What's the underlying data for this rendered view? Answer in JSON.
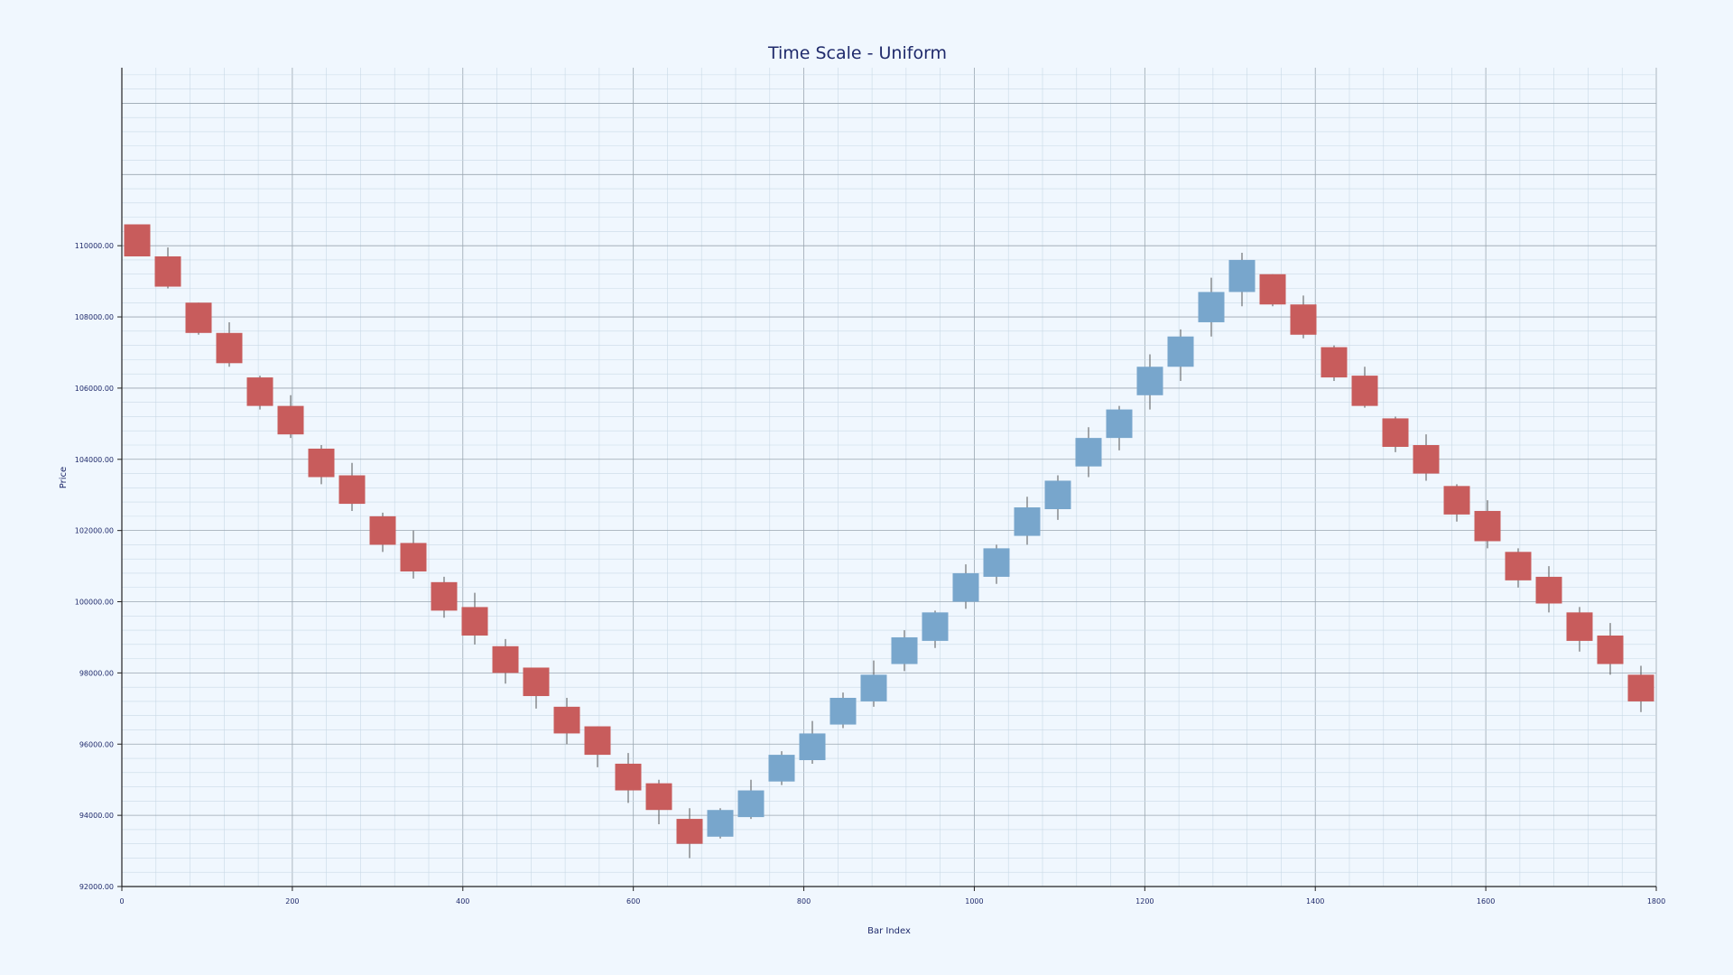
{
  "chart_data": {
    "type": "candlestick",
    "title": "Time Scale - Uniform",
    "xlabel": "Bar Index",
    "ylabel": "Price",
    "xlim": [
      0,
      1800
    ],
    "ylim": [
      92000,
      115000
    ],
    "x_ticks": [
      0,
      200,
      400,
      600,
      800,
      1000,
      1200,
      1400,
      1600,
      1800
    ],
    "x_tick_labels": [
      "0",
      "200",
      "400",
      "600",
      "800",
      "1000",
      "1200",
      "1400",
      "1600",
      "1800"
    ],
    "y_ticks": [
      92000,
      94000,
      96000,
      98000,
      100000,
      102000,
      104000,
      106000,
      108000,
      110000
    ],
    "y_tick_labels": [
      "92000.00",
      "94000.00",
      "96000.00",
      "98000.00",
      "100000.00",
      "102000.00",
      "104000.00",
      "106000.00",
      "108000.00",
      "110000.00"
    ],
    "grid": true,
    "colors": {
      "up": "#78a6cc",
      "down": "#c85c5c",
      "text": "#1f2a6b"
    },
    "candles": [
      {
        "x": 18,
        "open": 110600,
        "high": 110600,
        "low": 109700,
        "close": 109700
      },
      {
        "x": 54,
        "open": 109700,
        "high": 109950,
        "low": 108800,
        "close": 108850
      },
      {
        "x": 90,
        "open": 108400,
        "high": 108400,
        "low": 107500,
        "close": 107550
      },
      {
        "x": 126,
        "open": 107550,
        "high": 107850,
        "low": 106600,
        "close": 106700
      },
      {
        "x": 162,
        "open": 106300,
        "high": 106350,
        "low": 105400,
        "close": 105500
      },
      {
        "x": 198,
        "open": 105500,
        "high": 105800,
        "low": 104600,
        "close": 104700
      },
      {
        "x": 234,
        "open": 104300,
        "high": 104400,
        "low": 103300,
        "close": 103500
      },
      {
        "x": 270,
        "open": 103550,
        "high": 103900,
        "low": 102550,
        "close": 102750
      },
      {
        "x": 306,
        "open": 102400,
        "high": 102500,
        "low": 101400,
        "close": 101600
      },
      {
        "x": 342,
        "open": 101650,
        "high": 102000,
        "low": 100650,
        "close": 100850
      },
      {
        "x": 378,
        "open": 100550,
        "high": 100700,
        "low": 99550,
        "close": 99750
      },
      {
        "x": 414,
        "open": 99850,
        "high": 100250,
        "low": 98800,
        "close": 99050
      },
      {
        "x": 450,
        "open": 98750,
        "high": 98950,
        "low": 97700,
        "close": 98000
      },
      {
        "x": 486,
        "open": 98150,
        "high": 98150,
        "low": 97000,
        "close": 97350
      },
      {
        "x": 522,
        "open": 97050,
        "high": 97300,
        "low": 96000,
        "close": 96300
      },
      {
        "x": 558,
        "open": 96500,
        "high": 96500,
        "low": 95350,
        "close": 95700
      },
      {
        "x": 594,
        "open": 95450,
        "high": 95750,
        "low": 94350,
        "close": 94700
      },
      {
        "x": 630,
        "open": 94900,
        "high": 95000,
        "low": 93750,
        "close": 94150
      },
      {
        "x": 666,
        "open": 93900,
        "high": 94200,
        "low": 92800,
        "close": 93200
      },
      {
        "x": 702,
        "open": 93400,
        "high": 94200,
        "low": 93350,
        "close": 94150
      },
      {
        "x": 738,
        "open": 93950,
        "high": 95000,
        "low": 93900,
        "close": 94700
      },
      {
        "x": 774,
        "open": 94950,
        "high": 95800,
        "low": 94850,
        "close": 95700
      },
      {
        "x": 810,
        "open": 95550,
        "high": 96650,
        "low": 95450,
        "close": 96300
      },
      {
        "x": 846,
        "open": 96550,
        "high": 97450,
        "low": 96450,
        "close": 97300
      },
      {
        "x": 882,
        "open": 97200,
        "high": 98350,
        "low": 97050,
        "close": 97950
      },
      {
        "x": 918,
        "open": 98250,
        "high": 99200,
        "low": 98050,
        "close": 99000
      },
      {
        "x": 954,
        "open": 98900,
        "high": 99750,
        "low": 98700,
        "close": 99700
      },
      {
        "x": 990,
        "open": 100000,
        "high": 101050,
        "low": 99800,
        "close": 100800
      },
      {
        "x": 1026,
        "open": 100700,
        "high": 101600,
        "low": 100500,
        "close": 101500
      },
      {
        "x": 1062,
        "open": 101850,
        "high": 102950,
        "low": 101600,
        "close": 102650
      },
      {
        "x": 1098,
        "open": 102600,
        "high": 103550,
        "low": 102300,
        "close": 103400
      },
      {
        "x": 1134,
        "open": 103800,
        "high": 104900,
        "low": 103500,
        "close": 104600
      },
      {
        "x": 1170,
        "open": 104600,
        "high": 105500,
        "low": 104250,
        "close": 105400
      },
      {
        "x": 1206,
        "open": 105800,
        "high": 106950,
        "low": 105400,
        "close": 106600
      },
      {
        "x": 1242,
        "open": 106600,
        "high": 107650,
        "low": 106200,
        "close": 107450
      },
      {
        "x": 1278,
        "open": 107850,
        "high": 109100,
        "low": 107450,
        "close": 108700
      },
      {
        "x": 1314,
        "open": 108700,
        "high": 109800,
        "low": 108300,
        "close": 109600
      },
      {
        "x": 1350,
        "open": 109200,
        "high": 109200,
        "low": 108300,
        "close": 108350
      },
      {
        "x": 1386,
        "open": 108350,
        "high": 108600,
        "low": 107400,
        "close": 107500
      },
      {
        "x": 1422,
        "open": 107150,
        "high": 107200,
        "low": 106200,
        "close": 106300
      },
      {
        "x": 1458,
        "open": 106350,
        "high": 106600,
        "low": 105450,
        "close": 105500
      },
      {
        "x": 1494,
        "open": 105150,
        "high": 105200,
        "low": 104200,
        "close": 104350
      },
      {
        "x": 1530,
        "open": 104400,
        "high": 104700,
        "low": 103400,
        "close": 103600
      },
      {
        "x": 1566,
        "open": 103250,
        "high": 103300,
        "low": 102250,
        "close": 102450
      },
      {
        "x": 1602,
        "open": 102550,
        "high": 102850,
        "low": 101500,
        "close": 101700
      },
      {
        "x": 1638,
        "open": 101400,
        "high": 101500,
        "low": 100400,
        "close": 100600
      },
      {
        "x": 1674,
        "open": 100700,
        "high": 101000,
        "low": 99700,
        "close": 99950
      },
      {
        "x": 1710,
        "open": 99700,
        "high": 99850,
        "low": 98600,
        "close": 98900
      },
      {
        "x": 1746,
        "open": 99050,
        "high": 99400,
        "low": 97950,
        "close": 98250
      },
      {
        "x": 1782,
        "open": 97950,
        "high": 98200,
        "low": 96900,
        "close": 97200
      }
    ]
  }
}
